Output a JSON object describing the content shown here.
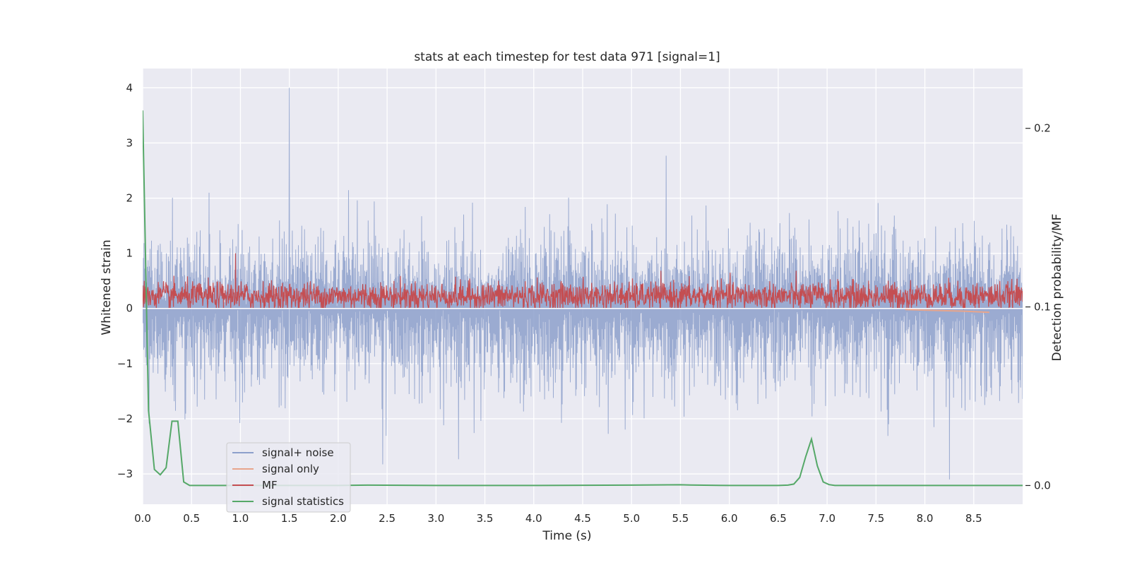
{
  "chart_data": {
    "type": "line",
    "title": "stats at each timestep for test data 971 [signal=1]",
    "xlabel": "Time (s)",
    "ylabel": "Whitened strain",
    "y2label": "Detection probability/MF",
    "xlim": [
      0,
      9.0
    ],
    "ylim": [
      -3.55,
      4.35
    ],
    "y2lim": [
      -0.0105,
      0.2335
    ],
    "xticks": [
      "0.0",
      "0.5",
      "1.0",
      "1.5",
      "2.0",
      "2.5",
      "3.0",
      "3.5",
      "4.0",
      "4.5",
      "5.0",
      "5.5",
      "6.0",
      "6.5",
      "7.0",
      "7.5",
      "8.0",
      "8.5"
    ],
    "yticks": [
      "4",
      "3",
      "2",
      "1",
      "0",
      "−1",
      "−2",
      "−3"
    ],
    "y2ticks": [
      "0.2",
      "0.1",
      "0.0"
    ],
    "grid": true,
    "legend_position": "lower-left",
    "colors": {
      "signal_noise": "#8da0cb",
      "signal_only": "#e8a58c",
      "mf": "#c44e52",
      "statistics": "#55a868",
      "background": "#eaeaf2"
    },
    "series": [
      {
        "name": "signal+ noise",
        "axis": "left",
        "description_range": [
          -3.1,
          4.0
        ],
        "peak": {
          "x": 1.5,
          "y": 4.0
        }
      },
      {
        "name": "signal only",
        "axis": "left",
        "x": [
          7.8,
          8.0,
          8.2,
          8.4,
          8.66
        ],
        "y": [
          -0.02,
          -0.03,
          -0.04,
          -0.05,
          -0.07
        ]
      },
      {
        "name": "MF",
        "axis": "left",
        "typical_range": [
          0.0,
          0.6
        ],
        "peak": {
          "x": 0.95,
          "y": 1.0
        }
      },
      {
        "name": "signal statistics",
        "axis": "right",
        "x": [
          0.0,
          0.06,
          0.12,
          0.18,
          0.24,
          0.3,
          0.36,
          0.42,
          0.48,
          0.54,
          1.0,
          2.0,
          2.3,
          3.0,
          4.0,
          5.0,
          5.5,
          5.6,
          6.0,
          6.5,
          6.6,
          6.66,
          6.72,
          6.78,
          6.84,
          6.9,
          6.96,
          7.02,
          7.08,
          7.2,
          8.0,
          9.0
        ],
        "y": [
          0.21,
          0.042,
          0.009,
          0.006,
          0.01,
          0.036,
          0.036,
          0.002,
          0.0,
          0.0,
          0.0,
          0.0,
          0.0002,
          0.0,
          0.0,
          0.0002,
          0.0004,
          0.0003,
          0.0,
          0.0,
          0.0002,
          0.0008,
          0.0045,
          0.016,
          0.026,
          0.011,
          0.002,
          0.0005,
          0.0,
          0.0,
          0.0,
          0.0
        ]
      }
    ]
  }
}
